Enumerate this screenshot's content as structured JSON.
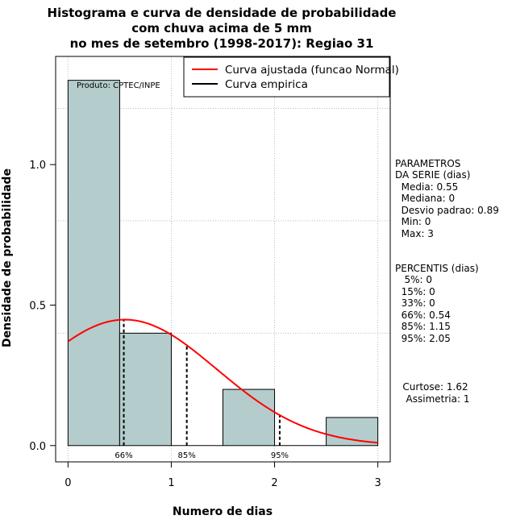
{
  "chart_data": {
    "type": "bar",
    "title_lines": [
      "Histograma e curva de densidade de probabilidade",
      "com chuva acima de 5 mm",
      "no mes de setembro (1998-2017): Regiao 31"
    ],
    "xlabel": "Numero de dias",
    "ylabel": "Densidade de probabilidade",
    "xlim": [
      -0.12,
      3.12
    ],
    "ylim": [
      -0.058,
      1.385
    ],
    "x_ticks": [
      "0",
      "1",
      "2",
      "3"
    ],
    "y_ticks": [
      "0.0",
      "0.5",
      "1.0"
    ],
    "bins": [
      {
        "from": 0.0,
        "to": 0.5,
        "density": 1.3
      },
      {
        "from": 0.5,
        "to": 1.0,
        "density": 0.4
      },
      {
        "from": 1.0,
        "to": 1.5,
        "density": 0.0
      },
      {
        "from": 1.5,
        "to": 2.0,
        "density": 0.2
      },
      {
        "from": 2.0,
        "to": 2.5,
        "density": 0.0
      },
      {
        "from": 2.5,
        "to": 3.0,
        "density": 0.1
      }
    ],
    "normal_fit": {
      "mean": 0.55,
      "sd": 0.89,
      "from": 0.0,
      "to": 3.0
    },
    "percentile_markers": [
      {
        "label": "66%",
        "x": 0.54
      },
      {
        "label": "85%",
        "x": 1.15
      },
      {
        "label": "95%",
        "x": 2.05
      }
    ],
    "legend": [
      {
        "label": "Curva ajustada (funcao Normal)",
        "color": "#ff0000"
      },
      {
        "label": "Curva empirica",
        "color": "#000000"
      }
    ],
    "product_label": "Produto: CPTEC/INPE",
    "bar_color": "#b4cccc",
    "curve_color": "#ff0000",
    "grid_color": "#bbbbbb"
  },
  "stats": {
    "parametros": [
      "PARAMETROS",
      "DA SERIE (dias)",
      "  Media: 0.55",
      "  Mediana: 0",
      "  Desvio padrao: 0.89",
      "  Min: 0",
      "  Max: 3"
    ],
    "percentis": [
      "PERCENTIS (dias)",
      "   5%: 0",
      "  15%: 0",
      "  33%: 0",
      "  66%: 0.54",
      "  85%: 1.15",
      "  95%: 2.05"
    ],
    "shape": [
      "Curtose: 1.62",
      "Assimetria: 1"
    ]
  }
}
